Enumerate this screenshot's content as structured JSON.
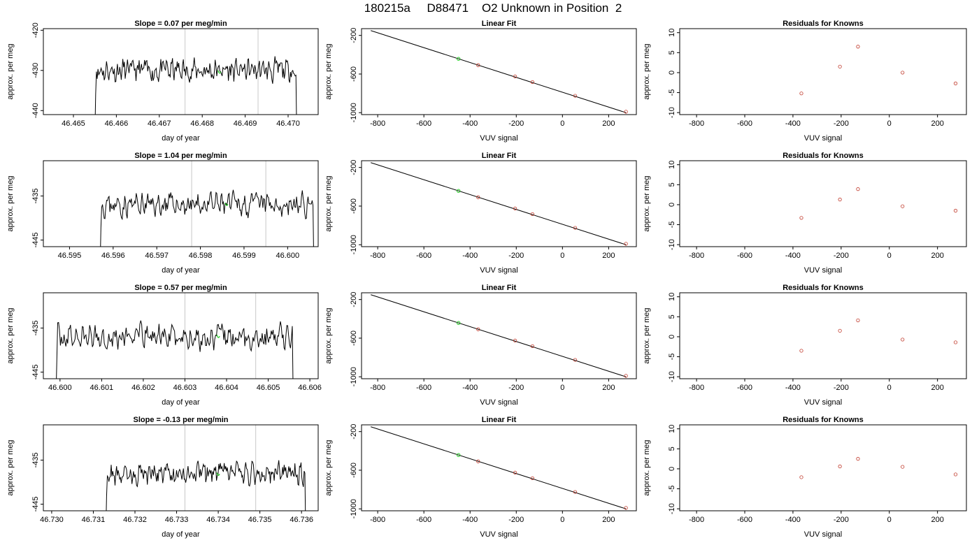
{
  "title": "180215a     D88471    O2 Unknown in Position  2",
  "colors": {
    "trace": "#000000",
    "point": "#c0392b",
    "highlight": "#22cc22",
    "vline": "#c8c8c8"
  },
  "chart_data": [
    {
      "row": 0,
      "panel": "timeseries",
      "type": "line",
      "title": "Slope =  0.07  per meg/min",
      "xlabel": "day of year",
      "ylabel": "approx. per meg",
      "xlim": [
        46.4643,
        46.4707
      ],
      "ylim": [
        -441,
        -419.6
      ],
      "xticks": [
        46.465,
        46.466,
        46.467,
        46.468,
        46.469,
        46.47
      ],
      "xtick_labels": [
        "46.465",
        "46.466",
        "46.467",
        "46.468",
        "46.469",
        "46.470"
      ],
      "yticks": [
        -440,
        -430,
        -420
      ],
      "ytick_labels": [
        "-440",
        "-430",
        "-420"
      ],
      "vlines": [
        46.4676,
        46.4693
      ],
      "start": 46.4655,
      "end": 46.4702,
      "mean": -430,
      "amp": 2.7,
      "seed": 11,
      "marker": {
        "x": 46.4684,
        "y": -430.5
      }
    },
    {
      "row": 0,
      "panel": "fit",
      "type": "scatter",
      "title": "Linear Fit",
      "xlabel": "VUV signal",
      "ylabel": "approx. per meg",
      "xlim": [
        -870,
        320
      ],
      "ylim": [
        -1020,
        -130
      ],
      "xticks": [
        -800,
        -600,
        -400,
        -200,
        0,
        200
      ],
      "xtick_labels": [
        "-800",
        "-600",
        "-400",
        "-200",
        "0",
        "200"
      ],
      "yticks": [
        -1000,
        -600,
        -200
      ],
      "ytick_labels": [
        "-1000",
        "-600",
        "-200"
      ],
      "line": {
        "x1": -830,
        "y1": -150,
        "x2": 275,
        "y2": -1000
      },
      "points": [
        {
          "x": -365,
          "y": -508
        },
        {
          "x": -205,
          "y": -625
        },
        {
          "x": -130,
          "y": -683
        },
        {
          "x": 55,
          "y": -825
        },
        {
          "x": 275,
          "y": -990
        }
      ],
      "green_point": {
        "x": -450,
        "y": -443
      }
    },
    {
      "row": 0,
      "panel": "residuals",
      "type": "scatter",
      "title": "Residuals for Knowns",
      "xlabel": "VUV signal",
      "ylabel": "approx. per meg",
      "xlim": [
        -870,
        320
      ],
      "ylim": [
        -10.5,
        11
      ],
      "xticks": [
        -800,
        -600,
        -400,
        -200,
        0,
        200
      ],
      "xtick_labels": [
        "-800",
        "-600",
        "-400",
        "-200",
        "0",
        "200"
      ],
      "yticks": [
        -10,
        -5,
        0,
        5,
        10
      ],
      "ytick_labels": [
        "-10",
        "-5",
        "0",
        "5",
        "10"
      ],
      "points": [
        {
          "x": -365,
          "y": -5.2
        },
        {
          "x": -205,
          "y": 1.5
        },
        {
          "x": -130,
          "y": 6.5
        },
        {
          "x": 55,
          "y": 0
        },
        {
          "x": 275,
          "y": -2.7
        }
      ]
    },
    {
      "row": 1,
      "panel": "timeseries",
      "type": "line",
      "title": "Slope =  1.04  per meg/min",
      "xlabel": "day of year",
      "ylabel": "approx. per meg",
      "xlim": [
        46.5944,
        46.6007
      ],
      "ylim": [
        -446.5,
        -427
      ],
      "xticks": [
        46.595,
        46.596,
        46.597,
        46.598,
        46.599,
        46.6
      ],
      "xtick_labels": [
        "46.595",
        "46.596",
        "46.597",
        "46.598",
        "46.599",
        "46.600"
      ],
      "yticks": [
        -445,
        -435
      ],
      "ytick_labels": [
        "-445",
        "-435"
      ],
      "vlines": [
        46.5978,
        46.5995
      ],
      "start": 46.5957,
      "end": 46.6006,
      "mean": -437,
      "amp": 2.4,
      "seed": 23,
      "marker": {
        "x": 46.5986,
        "y": -437
      }
    },
    {
      "row": 1,
      "panel": "fit",
      "type": "scatter",
      "title": "Linear Fit",
      "xlabel": "VUV signal",
      "ylabel": "approx. per meg",
      "xlim": [
        -870,
        320
      ],
      "ylim": [
        -1020,
        -130
      ],
      "xticks": [
        -800,
        -600,
        -400,
        -200,
        0,
        200
      ],
      "xtick_labels": [
        "-800",
        "-600",
        "-400",
        "-200",
        "0",
        "200"
      ],
      "yticks": [
        -1000,
        -600,
        -200
      ],
      "ytick_labels": [
        "-1000",
        "-600",
        "-200"
      ],
      "line": {
        "x1": -830,
        "y1": -150,
        "x2": 275,
        "y2": -1000
      },
      "points": [
        {
          "x": -365,
          "y": -508
        },
        {
          "x": -205,
          "y": -625
        },
        {
          "x": -130,
          "y": -683
        },
        {
          "x": 55,
          "y": -825
        },
        {
          "x": 275,
          "y": -990
        }
      ],
      "green_point": {
        "x": -450,
        "y": -443
      }
    },
    {
      "row": 1,
      "panel": "residuals",
      "type": "scatter",
      "title": "Residuals for Knowns",
      "xlabel": "VUV signal",
      "ylabel": "approx. per meg",
      "xlim": [
        -870,
        320
      ],
      "ylim": [
        -10.5,
        11
      ],
      "xticks": [
        -800,
        -600,
        -400,
        -200,
        0,
        200
      ],
      "xtick_labels": [
        "-800",
        "-600",
        "-400",
        "-200",
        "0",
        "200"
      ],
      "yticks": [
        -10,
        -5,
        0,
        5,
        10
      ],
      "ytick_labels": [
        "-10",
        "-5",
        "0",
        "5",
        "10"
      ],
      "points": [
        {
          "x": -365,
          "y": -3.3
        },
        {
          "x": -205,
          "y": 1.3
        },
        {
          "x": -130,
          "y": 3.9
        },
        {
          "x": 55,
          "y": -0.4
        },
        {
          "x": 275,
          "y": -1.5
        }
      ]
    },
    {
      "row": 2,
      "panel": "timeseries",
      "type": "line",
      "title": "Slope =  0.57  per meg/min",
      "xlabel": "day of year",
      "ylabel": "approx. per meg",
      "xlim": [
        46.5996,
        46.6062
      ],
      "ylim": [
        -446.5,
        -427
      ],
      "xticks": [
        46.6,
        46.601,
        46.602,
        46.603,
        46.604,
        46.605,
        46.606
      ],
      "xtick_labels": [
        "46.600",
        "46.601",
        "46.602",
        "46.603",
        "46.604",
        "46.605",
        "46.606"
      ],
      "yticks": [
        -445,
        -435
      ],
      "ytick_labels": [
        "-445",
        "-435"
      ],
      "vlines": [
        46.603,
        46.6047
      ],
      "start": 46.5999,
      "end": 46.6056,
      "mean": -437,
      "amp": 2.6,
      "seed": 37,
      "marker": {
        "x": 46.6038,
        "y": -437
      }
    },
    {
      "row": 2,
      "panel": "fit",
      "type": "scatter",
      "title": "Linear Fit",
      "xlabel": "VUV signal",
      "ylabel": "approx. per meg",
      "xlim": [
        -870,
        320
      ],
      "ylim": [
        -1020,
        -130
      ],
      "xticks": [
        -800,
        -600,
        -400,
        -200,
        0,
        200
      ],
      "xtick_labels": [
        "-800",
        "-600",
        "-400",
        "-200",
        "0",
        "200"
      ],
      "yticks": [
        -1000,
        -600,
        -200
      ],
      "ytick_labels": [
        "-1000",
        "-600",
        "-200"
      ],
      "line": {
        "x1": -830,
        "y1": -150,
        "x2": 275,
        "y2": -1000
      },
      "points": [
        {
          "x": -365,
          "y": -508
        },
        {
          "x": -205,
          "y": -625
        },
        {
          "x": -130,
          "y": -683
        },
        {
          "x": 55,
          "y": -825
        },
        {
          "x": 275,
          "y": -990
        }
      ],
      "green_point": {
        "x": -450,
        "y": -443
      }
    },
    {
      "row": 2,
      "panel": "residuals",
      "type": "scatter",
      "title": "Residuals for Knowns",
      "xlabel": "VUV signal",
      "ylabel": "approx. per meg",
      "xlim": [
        -870,
        320
      ],
      "ylim": [
        -10.5,
        11
      ],
      "xticks": [
        -800,
        -600,
        -400,
        -200,
        0,
        200
      ],
      "xtick_labels": [
        "-800",
        "-600",
        "-400",
        "-200",
        "0",
        "200"
      ],
      "yticks": [
        -10,
        -5,
        0,
        5,
        10
      ],
      "ytick_labels": [
        "-10",
        "-5",
        "0",
        "5",
        "10"
      ],
      "points": [
        {
          "x": -365,
          "y": -3.5
        },
        {
          "x": -205,
          "y": 1.5
        },
        {
          "x": -130,
          "y": 4.1
        },
        {
          "x": 55,
          "y": -0.7
        },
        {
          "x": 275,
          "y": -1.4
        }
      ]
    },
    {
      "row": 3,
      "panel": "timeseries",
      "type": "line",
      "title": "Slope =  -0.13  per meg/min",
      "xlabel": "day of year",
      "ylabel": "approx. per meg",
      "xlim": [
        46.7298,
        46.7364
      ],
      "ylim": [
        -446.5,
        -427
      ],
      "xticks": [
        46.73,
        46.731,
        46.732,
        46.733,
        46.734,
        46.735,
        46.736
      ],
      "xtick_labels": [
        "46.730",
        "46.731",
        "46.732",
        "46.733",
        "46.734",
        "46.735",
        "46.736"
      ],
      "yticks": [
        -445,
        -435
      ],
      "ytick_labels": [
        "-445",
        "-435"
      ],
      "vlines": [
        46.7332,
        46.7349
      ],
      "start": 46.7313,
      "end": 46.7361,
      "mean": -438,
      "amp": 2.4,
      "seed": 53,
      "marker": {
        "x": 46.734,
        "y": -438.3
      }
    },
    {
      "row": 3,
      "panel": "fit",
      "type": "scatter",
      "title": "Linear Fit",
      "xlabel": "VUV signal",
      "ylabel": "approx. per meg",
      "xlim": [
        -870,
        320
      ],
      "ylim": [
        -1020,
        -130
      ],
      "xticks": [
        -800,
        -600,
        -400,
        -200,
        0,
        200
      ],
      "xtick_labels": [
        "-800",
        "-600",
        "-400",
        "-200",
        "0",
        "200"
      ],
      "yticks": [
        -1000,
        -600,
        -200
      ],
      "ytick_labels": [
        "-1000",
        "-600",
        "-200"
      ],
      "line": {
        "x1": -830,
        "y1": -150,
        "x2": 275,
        "y2": -1000
      },
      "points": [
        {
          "x": -365,
          "y": -508
        },
        {
          "x": -205,
          "y": -625
        },
        {
          "x": -130,
          "y": -683
        },
        {
          "x": 55,
          "y": -825
        },
        {
          "x": 275,
          "y": -990
        }
      ],
      "green_point": {
        "x": -450,
        "y": -443
      }
    },
    {
      "row": 3,
      "panel": "residuals",
      "type": "scatter",
      "title": "Residuals for Knowns",
      "xlabel": "VUV signal",
      "ylabel": "approx. per meg",
      "xlim": [
        -870,
        320
      ],
      "ylim": [
        -10.5,
        11
      ],
      "xticks": [
        -800,
        -600,
        -400,
        -200,
        0,
        200
      ],
      "xtick_labels": [
        "-800",
        "-600",
        "-400",
        "-200",
        "0",
        "200"
      ],
      "yticks": [
        -10,
        -5,
        0,
        5,
        10
      ],
      "ytick_labels": [
        "-10",
        "-5",
        "0",
        "5",
        "10"
      ],
      "points": [
        {
          "x": -365,
          "y": -2.1
        },
        {
          "x": -205,
          "y": 0.6
        },
        {
          "x": -130,
          "y": 2.5
        },
        {
          "x": 55,
          "y": 0.5
        },
        {
          "x": 275,
          "y": -1.4
        }
      ]
    }
  ]
}
